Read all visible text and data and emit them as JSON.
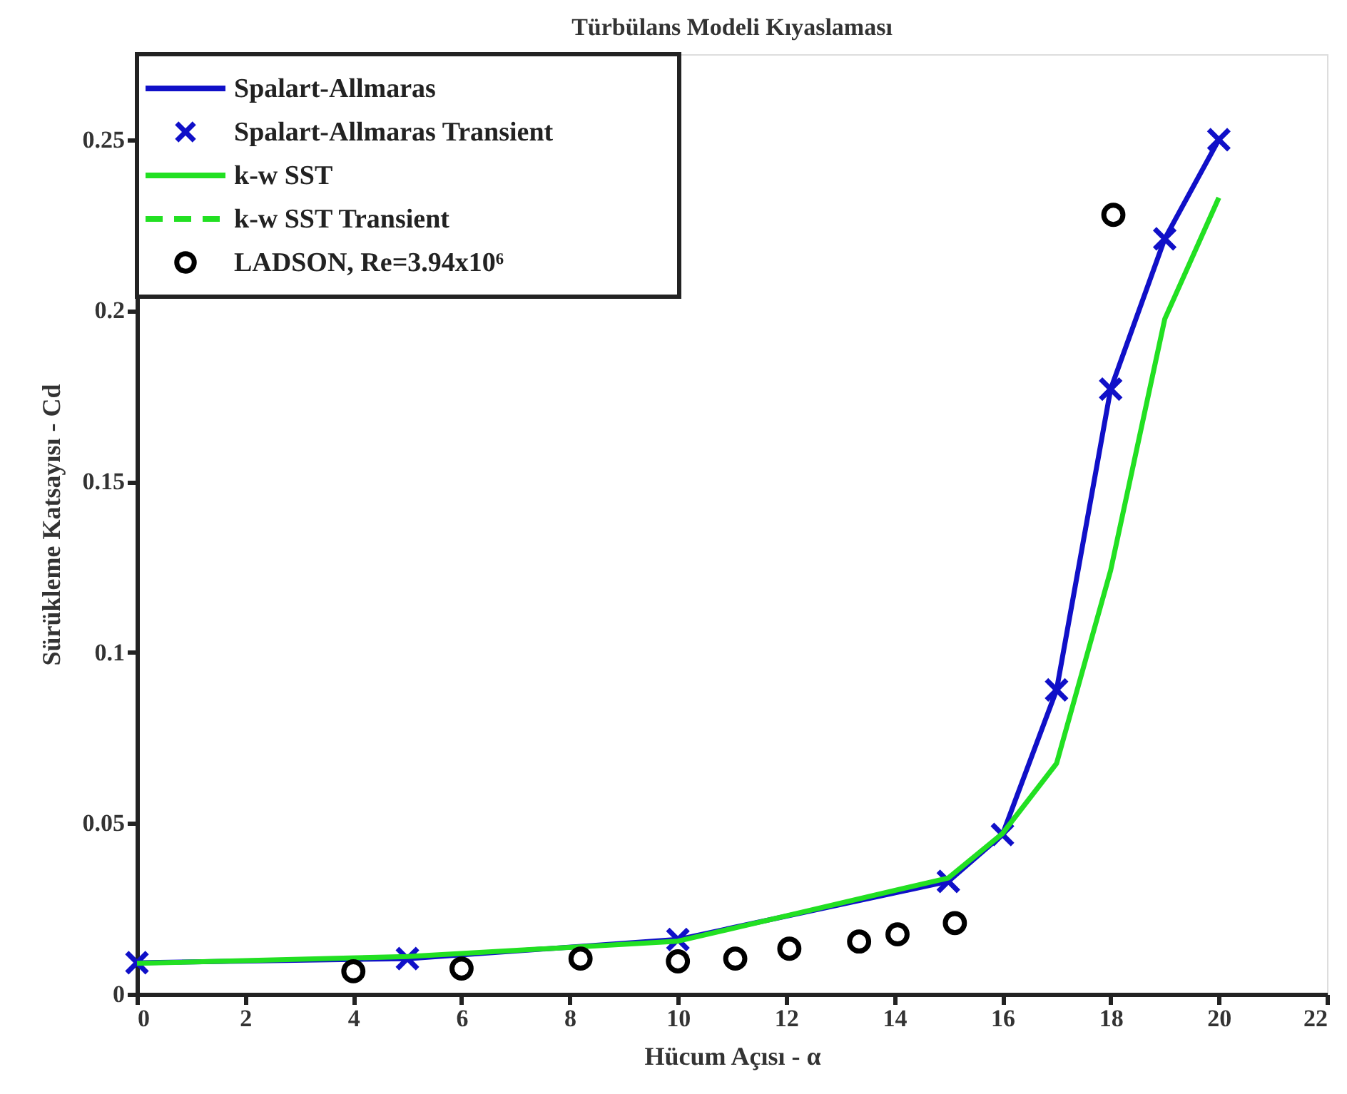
{
  "chart_data": {
    "type": "line",
    "title": "Türbülans Modeli Kıyaslaması",
    "xlabel": "Hücum Açısı - α",
    "ylabel": "Sürükleme Katsayısı - Cd",
    "xlim": [
      0,
      22
    ],
    "xticks": [
      0,
      2,
      4,
      6,
      8,
      10,
      12,
      14,
      16,
      18,
      20,
      22
    ],
    "ylim": [
      0,
      0.275
    ],
    "yticks": [
      0,
      0.05,
      0.1,
      0.15,
      0.2,
      0.25
    ],
    "grid": false,
    "legend": "top left",
    "series": [
      {
        "name": "Spalart-Allmaras",
        "color": "#1010c8",
        "line_style": "solid",
        "x": [
          0,
          5,
          10,
          15,
          16,
          17,
          18,
          19,
          20
        ],
        "values": [
          0.0092,
          0.0104,
          0.016,
          0.033,
          0.0467,
          0.089,
          0.177,
          0.221,
          0.25
        ]
      },
      {
        "name": "Spalart-Allmaras Transient",
        "type": "scatter",
        "color": "#1010c8",
        "marker": "cross",
        "x": [
          0,
          5,
          10,
          15,
          16,
          17,
          18,
          19,
          20
        ],
        "values": [
          0.0092,
          0.0104,
          0.016,
          0.033,
          0.0467,
          0.089,
          0.177,
          0.221,
          0.25
        ]
      },
      {
        "name": "k-w SST",
        "color": "#22e022",
        "line_style": "solid",
        "x": [
          0,
          5,
          10,
          15,
          16,
          17,
          18,
          19,
          20
        ],
        "values": [
          0.009,
          0.011,
          0.0155,
          0.034,
          0.047,
          0.0675,
          0.124,
          0.1975,
          0.233
        ]
      },
      {
        "name": "k-w SST Transient",
        "color": "#22e022",
        "line_style": "dashed"
      },
      {
        "name": "LADSON, Re=3.94x10⁶",
        "type": "scatter",
        "color": "#000000",
        "marker": "circle",
        "x": [
          4,
          6,
          8.2,
          10,
          11.06,
          12.06,
          13.35,
          14.06,
          15.12,
          18.05
        ],
        "values": [
          0.0067,
          0.0075,
          0.0104,
          0.0096,
          0.0104,
          0.0133,
          0.0154,
          0.0175,
          0.0208,
          0.228
        ]
      }
    ]
  }
}
